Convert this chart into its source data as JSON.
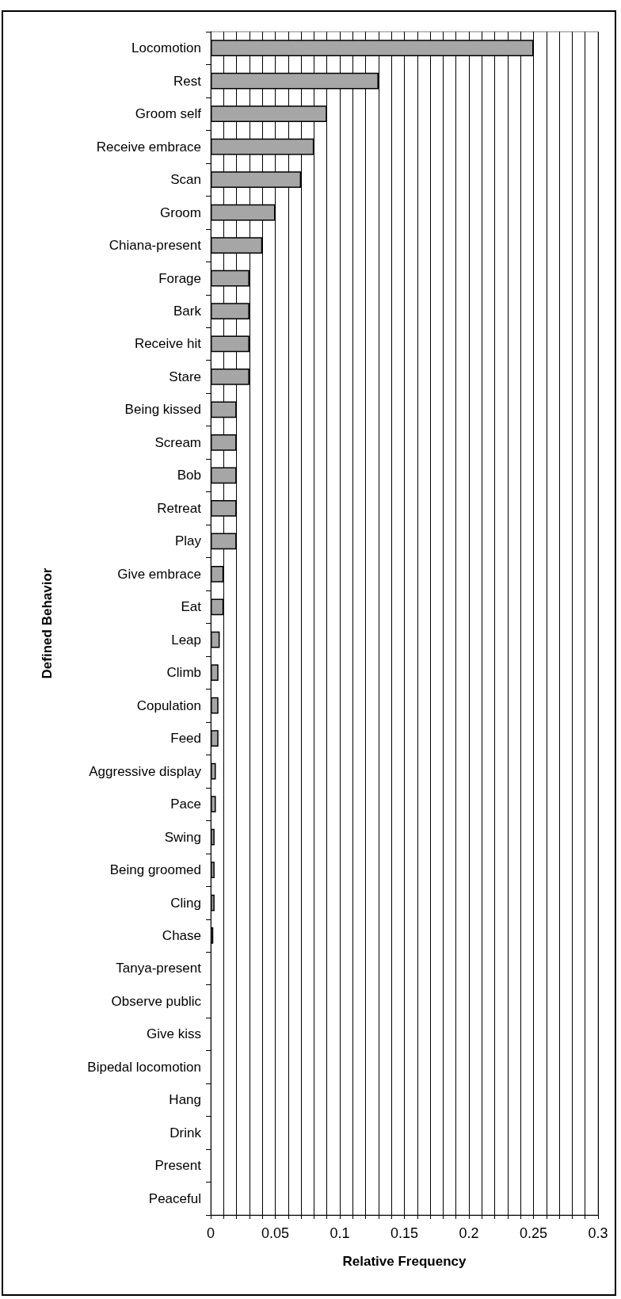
{
  "chart_data": {
    "type": "bar",
    "orientation": "horizontal",
    "xlabel": "Relative Frequency",
    "ylabel": "Defined Behavior",
    "categories": [
      "Locomotion",
      "Rest",
      "Groom self",
      "Receive embrace",
      "Scan",
      "Groom",
      "Chiana-present",
      "Forage",
      "Bark",
      "Receive hit",
      "Stare",
      "Being kissed",
      "Scream",
      "Bob",
      "Retreat",
      "Play",
      "Give embrace",
      "Eat",
      "Leap",
      "Climb",
      "Copulation",
      "Feed",
      "Aggressive display",
      "Pace",
      "Swing",
      "Being groomed",
      "Cling",
      "Chase",
      "Tanya-present",
      "Observe public",
      "Give kiss",
      "Bipedal locomotion",
      "Hang",
      "Drink",
      "Present",
      "Peaceful"
    ],
    "values": [
      0.25,
      0.13,
      0.09,
      0.08,
      0.07,
      0.05,
      0.04,
      0.03,
      0.03,
      0.03,
      0.03,
      0.02,
      0.02,
      0.02,
      0.02,
      0.02,
      0.01,
      0.01,
      0.007,
      0.006,
      0.006,
      0.006,
      0.004,
      0.004,
      0.003,
      0.003,
      0.003,
      0.002,
      0,
      0,
      0,
      0,
      0,
      0,
      0,
      0
    ],
    "color": "#a6a6a6",
    "xlim": [
      0,
      0.3
    ],
    "xticks": [
      0,
      {
        "value": 0.01,
        "label": null
      },
      {
        "value": 0.02,
        "label": null
      },
      {
        "value": 0.03,
        "label": null
      },
      {
        "value": 0.04,
        "label": null
      },
      0.05,
      {
        "value": 0.06,
        "label": null
      },
      {
        "value": 0.07,
        "label": null
      },
      {
        "value": 0.08,
        "label": null
      },
      {
        "value": 0.09,
        "label": null
      },
      0.1,
      {
        "value": 0.11,
        "label": null
      },
      {
        "value": 0.12,
        "label": null
      },
      {
        "value": 0.13,
        "label": null
      },
      {
        "value": 0.14,
        "label": null
      },
      0.15,
      {
        "value": 0.16,
        "label": null
      },
      {
        "value": 0.17,
        "label": null
      },
      {
        "value": 0.18,
        "label": null
      },
      {
        "value": 0.19,
        "label": null
      },
      0.2,
      {
        "value": 0.21,
        "label": null
      },
      {
        "value": 0.22,
        "label": null
      },
      {
        "value": 0.23,
        "label": null
      },
      {
        "value": 0.24,
        "label": null
      },
      0.25,
      {
        "value": 0.26,
        "label": null
      },
      {
        "value": 0.27,
        "label": null
      },
      {
        "value": 0.28,
        "label": null
      },
      {
        "value": 0.29,
        "label": null
      },
      0.3
    ],
    "grid": "x"
  }
}
